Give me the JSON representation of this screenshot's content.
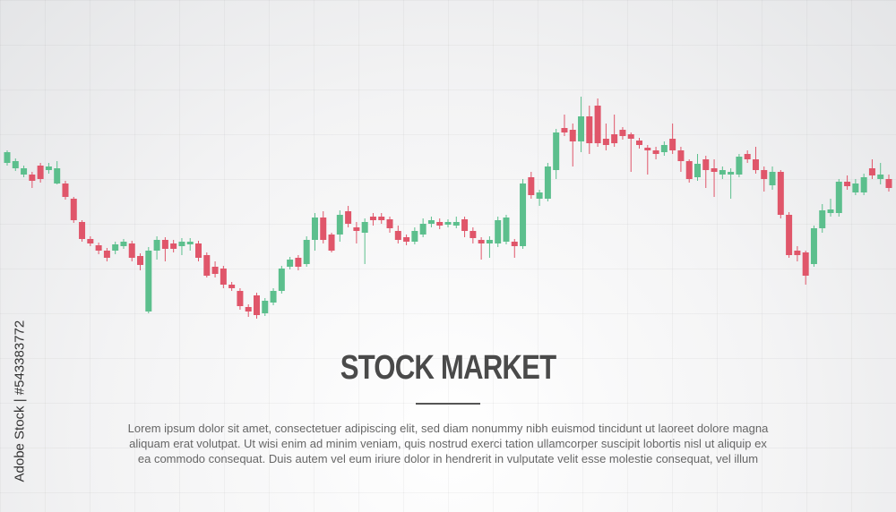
{
  "chart_data": {
    "type": "candlestick",
    "title": "STOCK MARKET",
    "description": [
      "Lorem ipsum dolor sit amet, consectetuer adipiscing elit, sed diam nonummy nibh euismod tincidunt ut laoreet dolore magna",
      "aliquam erat volutpat. Ut wisi enim ad minim veniam, quis nostrud exerci tation ullamcorper suscipit lobortis nisl ut aliquip ex",
      "ea commodo consequat. Duis autem vel eum iriure dolor in hendrerit in vulputate velit esse molestie consequat, vel illum"
    ],
    "up_color": "#5cbf8d",
    "down_color": "#e0566a",
    "open": [
      218,
      212,
      205,
      205,
      215,
      210,
      195,
      195,
      178,
      152,
      133,
      126,
      120,
      120,
      125,
      128,
      114,
      52,
      120,
      132,
      128,
      125,
      127,
      128,
      115,
      102,
      100,
      82,
      75,
      57,
      70,
      50,
      62,
      75,
      102,
      112,
      105,
      132,
      157,
      138,
      138,
      164,
      146,
      140,
      158,
      158,
      155,
      142,
      135,
      130,
      138,
      150,
      152,
      149,
      148,
      155,
      142,
      132,
      128,
      128,
      130,
      130,
      125,
      202,
      178,
      178,
      210,
      257,
      255,
      242,
      270,
      282,
      245,
      250,
      255,
      250,
      243,
      235,
      232,
      230,
      245,
      232,
      220,
      202,
      222,
      212,
      205,
      205,
      205,
      228,
      222,
      210,
      193,
      208,
      160,
      120,
      118,
      105,
      145,
      162,
      162,
      197,
      185,
      185,
      212,
      200,
      200
    ],
    "high": [
      232,
      223,
      215,
      208,
      218,
      218,
      220,
      198,
      180,
      154,
      136,
      129,
      123,
      130,
      133,
      131,
      117,
      124,
      136,
      135,
      132,
      134,
      134,
      131,
      118,
      108,
      103,
      85,
      78,
      60,
      73,
      67,
      78,
      103,
      113,
      115,
      136,
      162,
      164,
      140,
      165,
      170,
      152,
      156,
      162,
      162,
      158,
      148,
      138,
      146,
      156,
      158,
      156,
      155,
      158,
      158,
      146,
      135,
      136,
      158,
      160,
      133,
      200,
      208,
      188,
      218,
      256,
      272,
      262,
      292,
      282,
      290,
      262,
      272,
      258,
      252,
      246,
      238,
      236,
      242,
      262,
      236,
      222,
      228,
      226,
      222,
      214,
      212,
      228,
      232,
      236,
      214,
      214,
      210,
      163,
      125,
      120,
      148,
      172,
      178,
      200,
      204,
      200,
      206,
      222,
      218,
      205
    ],
    "low": [
      215,
      209,
      202,
      190,
      196,
      206,
      194,
      177,
      151,
      130,
      125,
      116,
      108,
      116,
      122,
      108,
      98,
      50,
      110,
      108,
      118,
      115,
      120,
      108,
      90,
      90,
      78,
      75,
      54,
      46,
      44,
      47,
      59,
      72,
      99,
      98,
      102,
      120,
      128,
      118,
      130,
      146,
      128,
      105,
      148,
      150,
      140,
      128,
      126,
      127,
      135,
      146,
      144,
      146,
      145,
      135,
      128,
      110,
      112,
      124,
      127,
      112,
      122,
      178,
      170,
      175,
      200,
      248,
      214,
      230,
      228,
      236,
      232,
      236,
      244,
      208,
      234,
      205,
      222,
      226,
      228,
      208,
      196,
      198,
      190,
      180,
      200,
      178,
      202,
      218,
      206,
      186,
      188,
      156,
      112,
      108,
      82,
      102,
      140,
      158,
      158,
      188,
      182,
      182,
      200,
      194,
      186
    ],
    "close": [
      230,
      220,
      212,
      198,
      200,
      214,
      212,
      180,
      154,
      133,
      128,
      120,
      112,
      127,
      130,
      112,
      104,
      120,
      132,
      122,
      122,
      130,
      130,
      112,
      92,
      94,
      82,
      78,
      58,
      52,
      48,
      64,
      75,
      100,
      110,
      102,
      132,
      157,
      132,
      120,
      160,
      150,
      142,
      152,
      154,
      154,
      145,
      132,
      130,
      142,
      150,
      154,
      148,
      152,
      152,
      142,
      134,
      128,
      132,
      154,
      157,
      125,
      195,
      182,
      185,
      214,
      252,
      252,
      242,
      270,
      240,
      240,
      238,
      240,
      248,
      245,
      238,
      232,
      228,
      238,
      232,
      220,
      200,
      217,
      210,
      208,
      210,
      208,
      225,
      222,
      210,
      200,
      208,
      160,
      115,
      115,
      92,
      145,
      165,
      166,
      197,
      192,
      195,
      202,
      204,
      205,
      190
    ]
  },
  "side_text": "Adobe Stock | #543383772"
}
